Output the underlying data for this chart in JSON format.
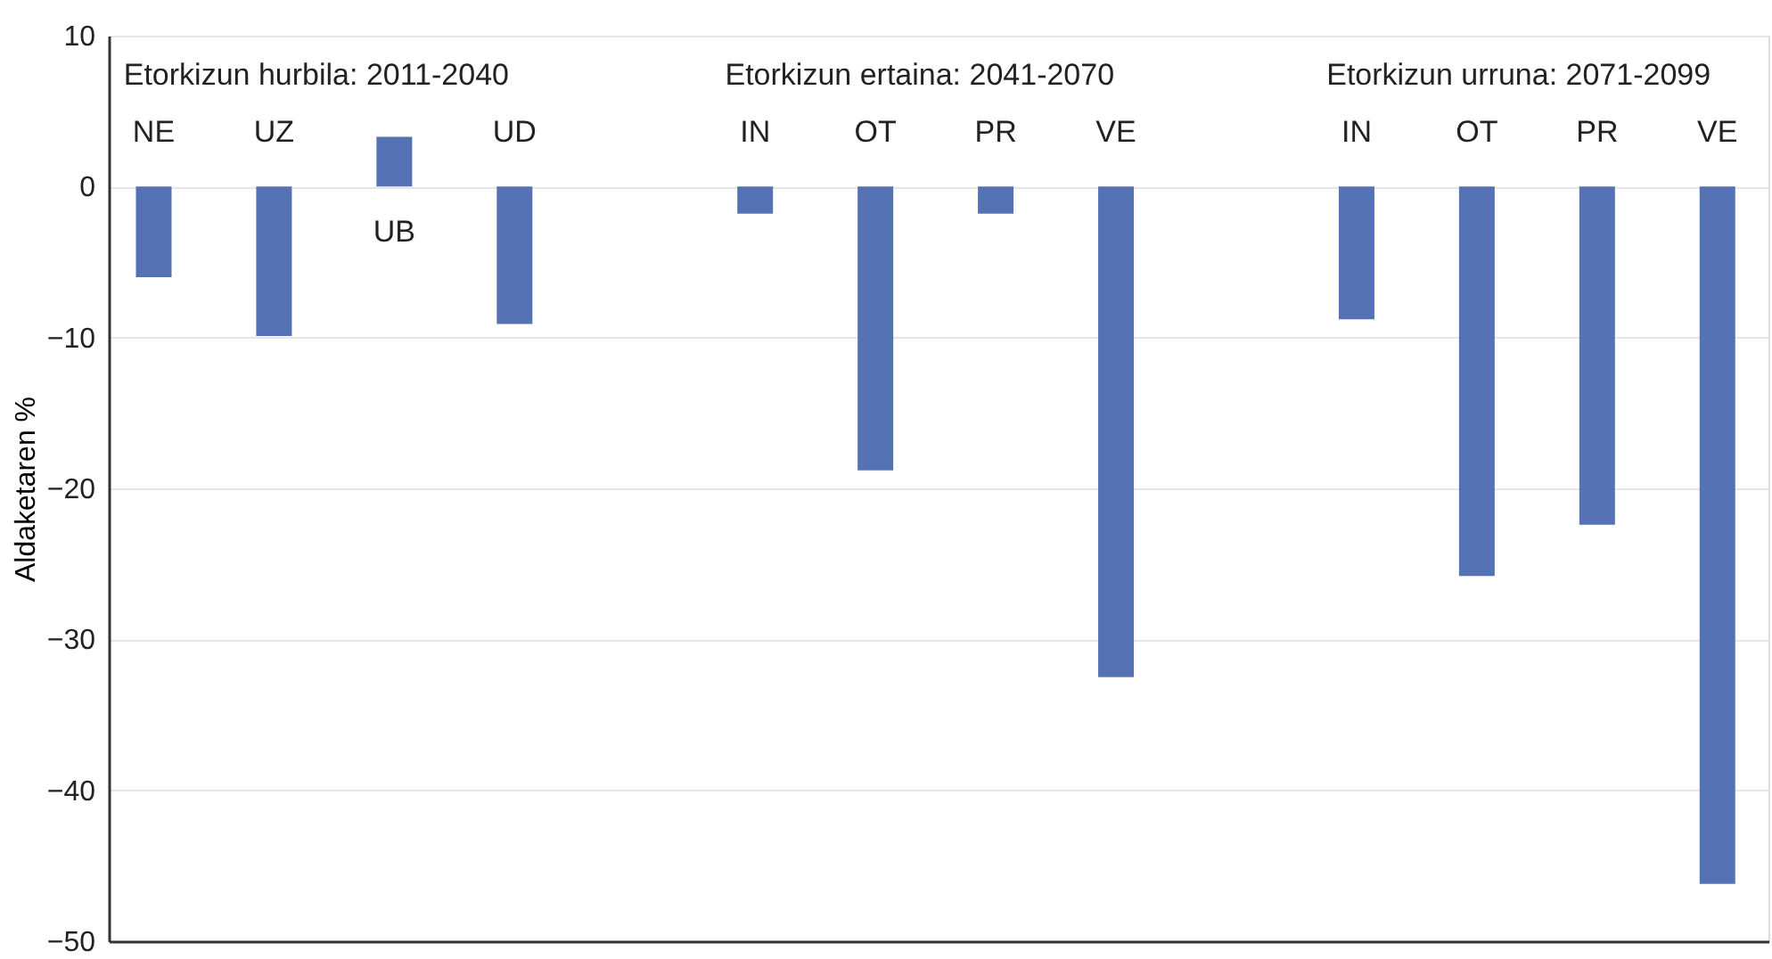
{
  "chart_data": {
    "type": "bar",
    "ylabel": "Aldaketaren %",
    "categories": [
      "NE",
      "UZ",
      "UB",
      "UD",
      null,
      "IN",
      "OT",
      "PR",
      "VE",
      null,
      "IN",
      "OT",
      "PR",
      "VE"
    ],
    "values": [
      -6.0,
      -9.9,
      3.3,
      -9.1,
      null,
      -1.8,
      -18.8,
      -1.8,
      -32.5,
      null,
      -8.8,
      -25.8,
      -22.4,
      -46.2
    ],
    "color": "#5572b5",
    "ylim": [
      -50,
      10
    ],
    "yticks": [
      -50,
      -40,
      -30,
      -20,
      -10,
      0,
      10
    ],
    "grid": "y",
    "tick_labels": "y",
    "annotations": [
      "Etorkizun hurbila: 2011-2040",
      "Etorkizun ertaina: 2041-2070",
      "Etorkizun urruna: 2071-2099"
    ]
  }
}
